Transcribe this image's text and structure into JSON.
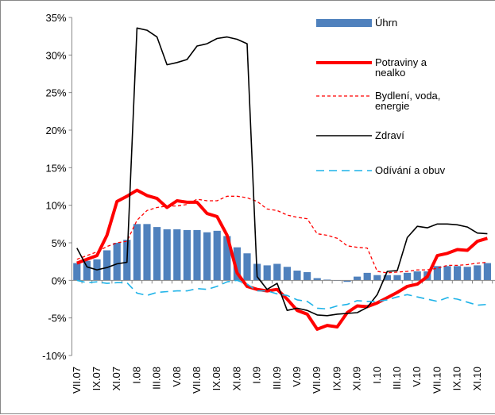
{
  "chart_data": {
    "type": "bar-line",
    "categories": [
      "VII.07",
      null,
      "IX.07",
      null,
      "XI.07",
      null,
      "I.08",
      null,
      "III.08",
      null,
      "V.08",
      null,
      "VII.08",
      null,
      "IX.08",
      null,
      "XI.08",
      null,
      "I.09",
      null,
      "III.09",
      null,
      "V.09",
      null,
      "VII.09",
      null,
      "IX.09",
      null,
      "XI.09",
      null,
      "I.10",
      null,
      "III.10",
      null,
      "V.10",
      null,
      "VII.10",
      null,
      "IX.10",
      null,
      "XI.10",
      null
    ],
    "series": [
      {
        "name": "Úhrn",
        "type": "bar",
        "color": "#4f81bd",
        "values": [
          2.3,
          2.6,
          2.8,
          4.0,
          5.0,
          5.4,
          7.5,
          7.5,
          7.1,
          6.8,
          6.8,
          6.7,
          6.7,
          6.4,
          6.6,
          5.9,
          4.4,
          3.6,
          2.2,
          2.0,
          2.2,
          1.8,
          1.3,
          1.1,
          0.3,
          0.1,
          0.0,
          -0.2,
          0.5,
          1.0,
          0.7,
          0.7,
          0.7,
          1.0,
          1.2,
          1.2,
          1.9,
          1.9,
          1.9,
          1.8,
          2.0,
          2.3
        ]
      },
      {
        "name": "Potraviny a nealko",
        "type": "line",
        "color": "#ff0000",
        "width": 4,
        "dash": "none",
        "values": [
          2.3,
          2.8,
          3.3,
          6.0,
          10.5,
          11.2,
          12.0,
          11.3,
          10.9,
          9.7,
          10.6,
          10.4,
          10.4,
          8.9,
          8.5,
          6.0,
          1.0,
          -0.8,
          -1.2,
          -1.4,
          -1.2,
          -2.5,
          -4.0,
          -4.5,
          -6.5,
          -6.0,
          -6.2,
          -4.3,
          -3.4,
          -3.5,
          -3.0,
          -2.3,
          -1.6,
          -0.8,
          -0.5,
          0.5,
          3.3,
          3.6,
          4.1,
          4.0,
          5.2,
          5.6
        ]
      },
      {
        "name": "Bydlení, voda, energie",
        "type": "line",
        "color": "#ff0000",
        "width": 1.3,
        "dash": "4 3",
        "values": [
          2.8,
          3.3,
          3.8,
          4.5,
          5.0,
          5.2,
          8.0,
          9.3,
          9.7,
          9.9,
          9.9,
          10.1,
          10.8,
          10.6,
          10.6,
          11.2,
          11.2,
          11.0,
          10.5,
          9.5,
          9.3,
          8.7,
          8.4,
          8.2,
          6.2,
          6.0,
          5.6,
          4.6,
          4.4,
          4.3,
          1.2,
          1.0,
          1.1,
          1.2,
          1.4,
          1.4,
          1.6,
          2.0,
          2.0,
          2.1,
          2.3,
          2.4
        ]
      },
      {
        "name": "Zdraví",
        "type": "line",
        "color": "#000000",
        "width": 1.6,
        "dash": "none",
        "values": [
          4.3,
          1.8,
          1.4,
          1.7,
          2.2,
          2.4,
          33.6,
          33.3,
          32.4,
          28.7,
          29.0,
          29.4,
          31.2,
          31.5,
          32.2,
          32.4,
          32.1,
          31.5,
          0.5,
          -1.2,
          -0.4,
          -4.0,
          -3.7,
          -4.0,
          -4.6,
          -4.7,
          -4.5,
          -4.4,
          -4.3,
          -3.6,
          -1.9,
          1.2,
          1.3,
          5.7,
          7.2,
          7.0,
          7.5,
          7.5,
          7.4,
          7.1,
          6.3,
          6.2
        ]
      },
      {
        "name": "Odívání a obuv",
        "type": "line",
        "color": "#1fb3e8",
        "width": 1.6,
        "dash": "10 6",
        "values": [
          0.0,
          -0.3,
          -0.2,
          -0.4,
          -0.3,
          -0.3,
          -1.7,
          -2.0,
          -1.6,
          -1.5,
          -1.4,
          -1.4,
          -1.1,
          -1.2,
          -0.8,
          -0.2,
          0.0,
          -0.5,
          -1.4,
          -1.4,
          -1.8,
          -2.0,
          -2.6,
          -2.8,
          -3.7,
          -3.8,
          -3.4,
          -3.2,
          -2.7,
          -2.8,
          -2.8,
          -2.6,
          -2.2,
          -1.9,
          -2.2,
          -2.5,
          -2.8,
          -2.3,
          -2.5,
          -2.9,
          -3.3,
          -3.2
        ]
      }
    ],
    "ylim": [
      -10,
      35
    ],
    "yticks": [
      {
        "value": -10,
        "label": "-10%"
      },
      {
        "value": -5,
        "label": "-5%"
      },
      {
        "value": 0,
        "label": "0%"
      },
      {
        "value": 5,
        "label": "5%"
      },
      {
        "value": 10,
        "label": "10%"
      },
      {
        "value": 15,
        "label": "15%"
      },
      {
        "value": 20,
        "label": "20%"
      },
      {
        "value": 25,
        "label": "25%"
      },
      {
        "value": 30,
        "label": "30%"
      },
      {
        "value": 35,
        "label": "35%"
      }
    ],
    "grid": false
  }
}
